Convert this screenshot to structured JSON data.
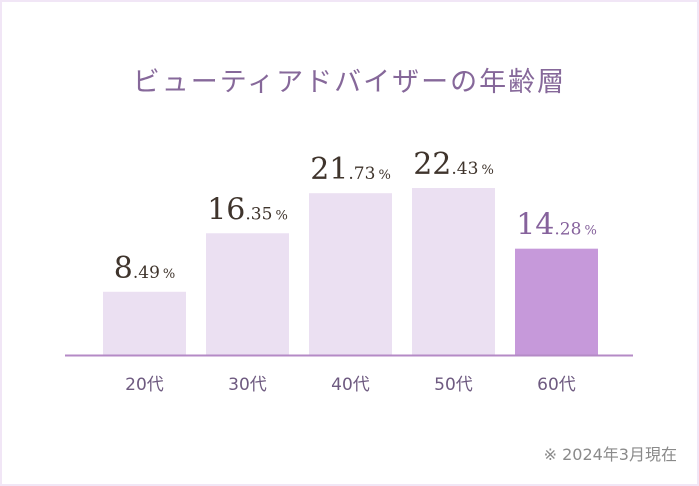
{
  "chart_data": {
    "type": "bar",
    "title": "ビューティアドバイザーの年齢層",
    "categories": [
      "20代",
      "30代",
      "40代",
      "50代",
      "60代"
    ],
    "values": [
      8.49,
      16.35,
      21.73,
      22.43,
      14.28
    ],
    "labels": [
      {
        "int": "8",
        "dec": ".49",
        "unit": "%"
      },
      {
        "int": "16",
        "dec": ".35",
        "unit": "%"
      },
      {
        "int": "21",
        "dec": ".73",
        "unit": "%"
      },
      {
        "int": "22",
        "dec": ".43",
        "unit": "%"
      },
      {
        "int": "14",
        "dec": ".28",
        "unit": "%"
      }
    ],
    "highlight_index": 4,
    "ylim": [
      0,
      22.43
    ],
    "grid": false,
    "colors": {
      "bar": "#ebe0f2",
      "highlight": "#c699da",
      "label": "#3f342c",
      "highlight_label": "#86629c",
      "axis": "#b48ac6",
      "tick": "#6e5a80"
    }
  },
  "note": "※ 2024年3月現在"
}
